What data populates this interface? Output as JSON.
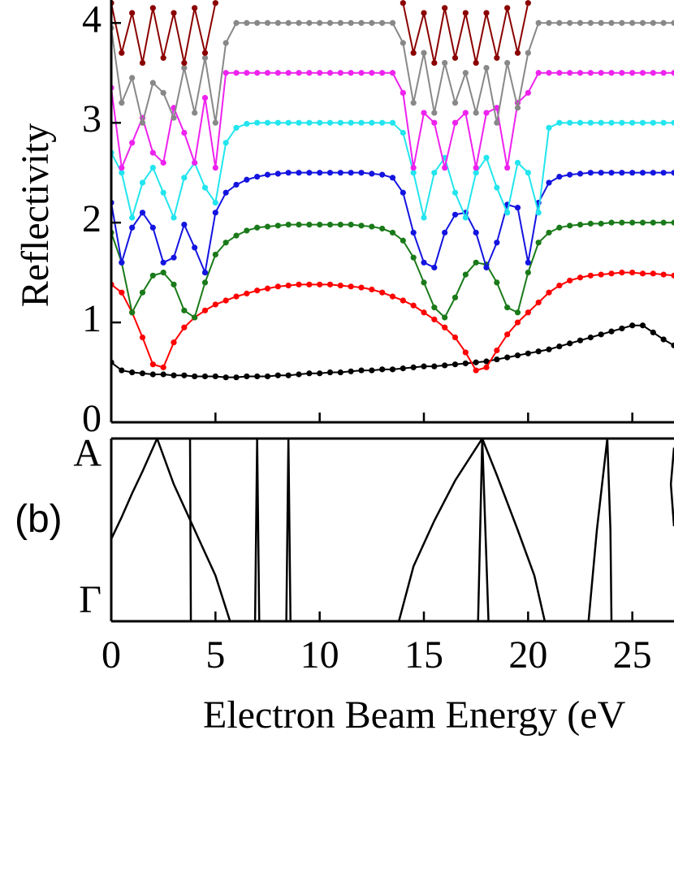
{
  "chart_data": [
    {
      "type": "line",
      "markers": true,
      "ylabel": "Reflectivity",
      "x": [
        0,
        0.5,
        1,
        1.5,
        2,
        2.5,
        3,
        3.5,
        4,
        4.5,
        5,
        5.5,
        6,
        6.5,
        7,
        7.5,
        8,
        8.5,
        9,
        9.5,
        10,
        10.5,
        11,
        11.5,
        12,
        12.5,
        13,
        13.5,
        14,
        14.5,
        15,
        15.5,
        16,
        16.5,
        17,
        17.5,
        18,
        18.5,
        19,
        19.5,
        20,
        20.5,
        21,
        21.5,
        22,
        22.5,
        23,
        23.5,
        24,
        24.5,
        25,
        25.5,
        26,
        26.5,
        27
      ],
      "xlim": [
        0,
        27
      ],
      "xticks": [
        0,
        5,
        10,
        15,
        20,
        25
      ],
      "show_xtick_labels": false,
      "ylim": [
        0,
        4.23
      ],
      "yticks": [
        0,
        1,
        2,
        3,
        4
      ],
      "series": [
        {
          "color": "#000000",
          "values": [
            0.6,
            0.52,
            0.5,
            0.49,
            0.48,
            0.48,
            0.47,
            0.47,
            0.46,
            0.46,
            0.46,
            0.45,
            0.45,
            0.46,
            0.46,
            0.46,
            0.47,
            0.47,
            0.48,
            0.49,
            0.49,
            0.5,
            0.5,
            0.51,
            0.52,
            0.52,
            0.53,
            0.53,
            0.54,
            0.55,
            0.56,
            0.56,
            0.57,
            0.58,
            0.59,
            0.6,
            0.61,
            0.63,
            0.65,
            0.67,
            0.69,
            0.71,
            0.73,
            0.76,
            0.79,
            0.82,
            0.85,
            0.88,
            0.91,
            0.94,
            0.97,
            0.97,
            0.9,
            0.83,
            0.77
          ]
        },
        {
          "color": "#ff0000",
          "values": [
            1.38,
            1.3,
            1.1,
            0.85,
            0.58,
            0.55,
            0.8,
            0.95,
            1.05,
            1.12,
            1.18,
            1.22,
            1.26,
            1.29,
            1.32,
            1.34,
            1.36,
            1.37,
            1.38,
            1.38,
            1.38,
            1.38,
            1.37,
            1.36,
            1.35,
            1.33,
            1.3,
            1.26,
            1.22,
            1.17,
            1.1,
            1.03,
            0.95,
            0.85,
            0.7,
            0.52,
            0.55,
            0.72,
            0.88,
            1.0,
            1.1,
            1.2,
            1.3,
            1.37,
            1.42,
            1.45,
            1.47,
            1.48,
            1.49,
            1.5,
            1.5,
            1.49,
            1.49,
            1.48,
            1.47
          ]
        },
        {
          "color": "#1a7a1a",
          "values": [
            1.9,
            1.6,
            1.1,
            1.3,
            1.47,
            1.5,
            1.38,
            1.12,
            1.05,
            1.4,
            1.68,
            1.8,
            1.87,
            1.92,
            1.95,
            1.96,
            1.97,
            1.98,
            1.98,
            1.98,
            1.98,
            1.98,
            1.98,
            1.98,
            1.97,
            1.96,
            1.94,
            1.9,
            1.82,
            1.65,
            1.4,
            1.15,
            1.05,
            1.25,
            1.48,
            1.6,
            1.58,
            1.4,
            1.15,
            1.1,
            1.5,
            1.8,
            1.9,
            1.95,
            1.97,
            1.98,
            1.99,
            1.99,
            2.0,
            2.0,
            2.0,
            2.0,
            2.0,
            2.0,
            2.0
          ]
        },
        {
          "color": "#1414e0",
          "values": [
            2.2,
            1.6,
            1.95,
            2.1,
            1.95,
            1.6,
            1.65,
            1.98,
            1.75,
            1.5,
            2.1,
            2.3,
            2.38,
            2.43,
            2.46,
            2.48,
            2.49,
            2.5,
            2.5,
            2.5,
            2.5,
            2.5,
            2.5,
            2.5,
            2.5,
            2.49,
            2.48,
            2.45,
            2.3,
            1.9,
            1.6,
            1.55,
            1.9,
            2.08,
            2.1,
            1.9,
            1.55,
            1.8,
            2.18,
            2.15,
            1.6,
            2.2,
            2.4,
            2.46,
            2.48,
            2.49,
            2.5,
            2.5,
            2.5,
            2.5,
            2.5,
            2.5,
            2.5,
            2.5,
            2.5
          ]
        },
        {
          "color": "#22e5ee",
          "values": [
            2.7,
            2.5,
            2.05,
            2.4,
            2.55,
            2.3,
            2.05,
            2.45,
            2.6,
            2.35,
            2.2,
            2.8,
            2.95,
            2.99,
            3.0,
            3.0,
            3.0,
            3.0,
            3.0,
            3.0,
            3.0,
            3.0,
            3.0,
            3.0,
            3.0,
            3.0,
            3.0,
            3.0,
            2.9,
            2.5,
            2.05,
            2.5,
            2.65,
            2.3,
            2.05,
            2.5,
            2.65,
            2.35,
            2.1,
            2.6,
            2.5,
            2.1,
            2.95,
            3.0,
            3.0,
            3.0,
            3.0,
            3.0,
            3.0,
            3.0,
            3.0,
            3.0,
            3.0,
            3.0,
            3.0
          ]
        },
        {
          "color": "#ee22ee",
          "values": [
            3.35,
            2.55,
            2.8,
            3.05,
            2.7,
            2.6,
            3.15,
            2.9,
            2.6,
            3.25,
            2.55,
            3.5,
            3.5,
            3.5,
            3.5,
            3.5,
            3.5,
            3.5,
            3.5,
            3.5,
            3.5,
            3.5,
            3.5,
            3.5,
            3.5,
            3.5,
            3.5,
            3.5,
            3.3,
            2.55,
            3.1,
            3.0,
            2.55,
            3.0,
            3.1,
            2.55,
            3.1,
            3.15,
            2.55,
            3.2,
            3.3,
            3.5,
            3.5,
            3.5,
            3.5,
            3.5,
            3.5,
            3.5,
            3.5,
            3.5,
            3.5,
            3.5,
            3.5,
            3.5,
            3.5
          ]
        },
        {
          "color": "#888888",
          "values": [
            3.95,
            3.2,
            3.45,
            3.0,
            3.4,
            3.3,
            3.05,
            3.55,
            3.1,
            3.65,
            3.0,
            3.8,
            4.0,
            4.0,
            4.0,
            4.0,
            4.0,
            4.0,
            4.0,
            4.0,
            4.0,
            4.0,
            4.0,
            4.0,
            4.0,
            4.0,
            4.0,
            4.0,
            3.8,
            3.2,
            3.7,
            3.1,
            3.6,
            3.2,
            3.5,
            3.1,
            3.55,
            3.0,
            3.6,
            3.15,
            3.7,
            4.0,
            4.0,
            4.0,
            4.0,
            4.0,
            4.0,
            4.0,
            4.0,
            4.0,
            4.0,
            4.0,
            4.0,
            4.0,
            4.0
          ]
        },
        {
          "color": "#8b0000",
          "values": [
            4.2,
            3.7,
            4.1,
            3.6,
            4.15,
            3.65,
            4.1,
            3.6,
            4.15,
            3.7,
            4.2,
            null,
            null,
            null,
            null,
            null,
            null,
            null,
            null,
            null,
            null,
            null,
            null,
            null,
            null,
            null,
            null,
            null,
            4.2,
            3.7,
            4.1,
            3.6,
            4.15,
            3.65,
            4.1,
            3.6,
            4.1,
            3.65,
            4.15,
            3.7,
            4.2,
            null,
            null,
            null,
            null,
            null,
            null,
            null,
            null,
            null,
            null,
            null,
            null,
            null,
            null
          ]
        }
      ]
    },
    {
      "type": "line",
      "markers": false,
      "panel_label": "(b)",
      "xlabel": "Electron Beam Energy (eV",
      "xlim": [
        0,
        27
      ],
      "xticks": [
        0,
        5,
        10,
        15,
        20,
        25
      ],
      "show_xtick_labels": true,
      "ylim": [
        0,
        1
      ],
      "yticks": [
        {
          "value": 0,
          "label": "Γ"
        },
        {
          "value": 1,
          "label": "A"
        }
      ],
      "series": [
        {
          "color": "#000000",
          "x": [
            0,
            0.5,
            1,
            1.5,
            2.2,
            3,
            4,
            5,
            5.7
          ],
          "values": [
            0.45,
            0.57,
            0.7,
            0.82,
            1.0,
            0.75,
            0.5,
            0.25,
            0
          ]
        },
        {
          "color": "#000000",
          "x": [
            3.78,
            3.82
          ],
          "values": [
            1,
            0
          ]
        },
        {
          "color": "#000000",
          "x": [
            6.9,
            7.0,
            7.1
          ],
          "values": [
            0,
            1,
            0
          ]
        },
        {
          "color": "#000000",
          "x": [
            8.4,
            8.5,
            8.6
          ],
          "values": [
            0,
            1,
            0
          ]
        },
        {
          "color": "#000000",
          "x": [
            13.8,
            14.5,
            15.5,
            16.5,
            17.8,
            18.5,
            19.5,
            20.3,
            20.8
          ],
          "values": [
            0,
            0.3,
            0.55,
            0.77,
            1.0,
            0.8,
            0.5,
            0.25,
            0
          ]
        },
        {
          "color": "#000000",
          "x": [
            17.6,
            17.8,
            18.1
          ],
          "values": [
            0,
            1,
            0
          ]
        },
        {
          "color": "#000000",
          "x": [
            22.9,
            23.3,
            23.8,
            23.95,
            24.0
          ],
          "values": [
            0,
            0.5,
            1.0,
            0.5,
            0
          ]
        },
        {
          "color": "#000000",
          "x": [
            27,
            26.85,
            27
          ],
          "values": [
            0.95,
            0.75,
            0.52
          ]
        }
      ]
    }
  ]
}
